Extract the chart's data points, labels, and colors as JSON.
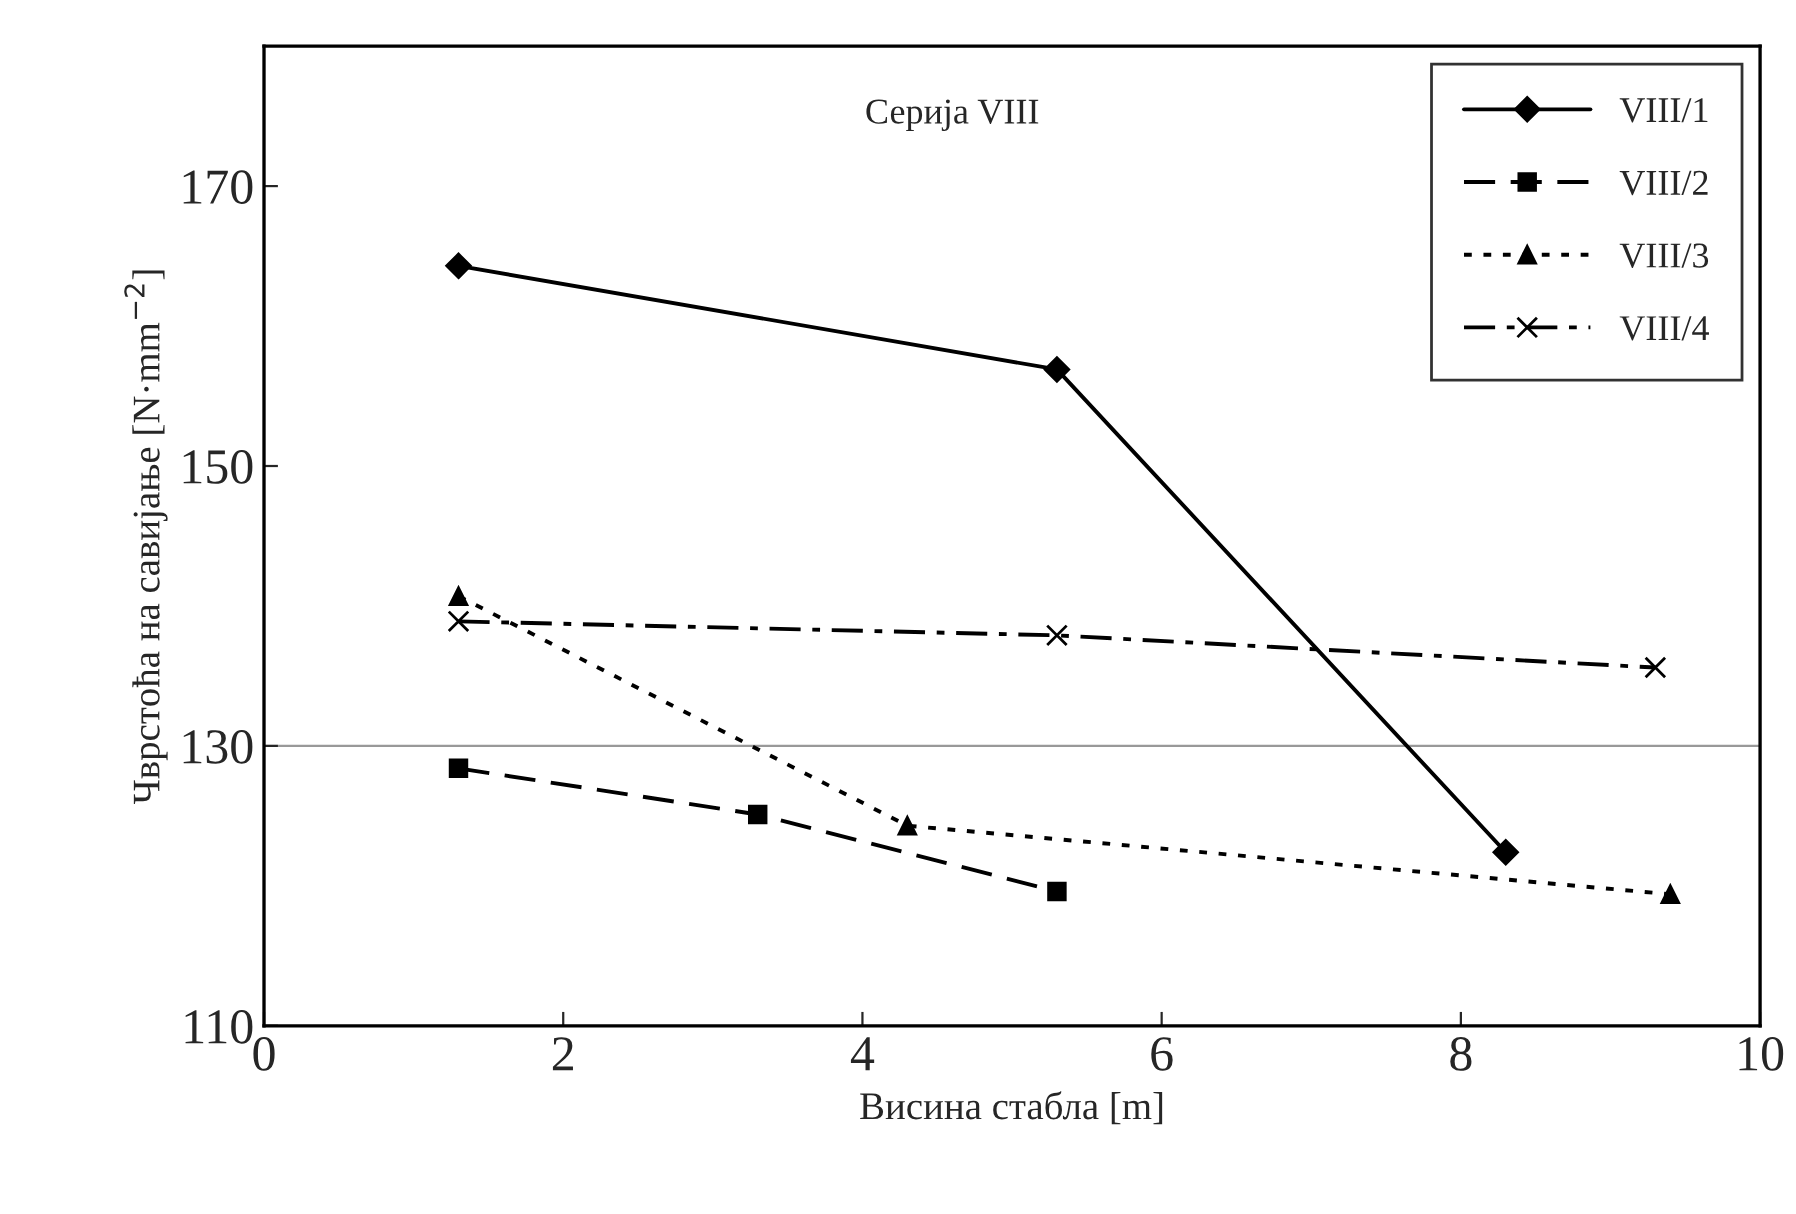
{
  "chart_data": {
    "type": "line",
    "title": "Серија VIII",
    "xlabel": "Висина стабла [m]",
    "ylabel": "Чврстоћа на савијање [N·mm$^{−2}$]",
    "xlim": [
      0,
      10
    ],
    "xticks": [
      0,
      2,
      4,
      6,
      8,
      10
    ],
    "ylim": [
      110,
      180
    ],
    "yticks": [
      110,
      130,
      150,
      170
    ],
    "grid": false,
    "legend": "top right",
    "ref_lines": [
      {
        "axis": "y",
        "value": 130,
        "color": "#999999"
      }
    ],
    "series": [
      {
        "name": "VIII/1",
        "color": "#000000",
        "x": [
          1.3,
          5.3,
          8.3
        ],
        "values": [
          164.3,
          156.9,
          122.4
        ],
        "marker": "diamond",
        "line_style": "solid"
      },
      {
        "name": "VIII/2",
        "color": "#000000",
        "x": [
          1.3,
          3.3,
          5.3
        ],
        "values": [
          128.4,
          125.1,
          119.6
        ],
        "marker": "square",
        "line_style": "dashed"
      },
      {
        "name": "VIII/3",
        "color": "#000000",
        "x": [
          1.3,
          4.3,
          9.4
        ],
        "values": [
          140.7,
          124.3,
          119.4
        ],
        "marker": "triangle",
        "line_style": "dotted"
      },
      {
        "name": "VIII/4",
        "color": "#000000",
        "x": [
          1.3,
          5.3,
          9.3
        ],
        "values": [
          138.9,
          137.9,
          135.6
        ],
        "marker": "cross",
        "line_style": "dashdot"
      }
    ]
  }
}
